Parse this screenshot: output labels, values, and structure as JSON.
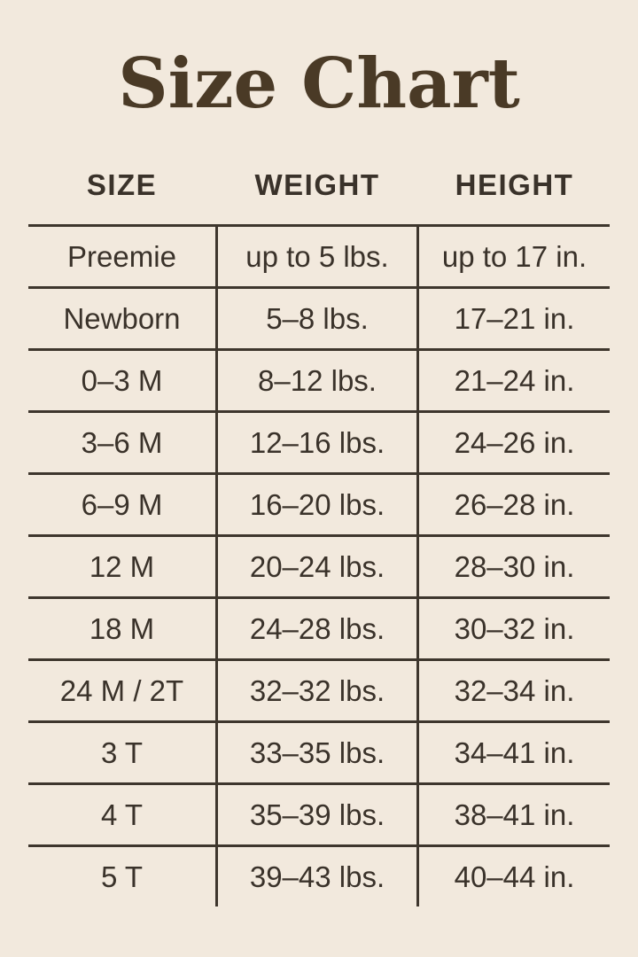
{
  "title": "Size Chart",
  "colors": {
    "background": "#f2e9dd",
    "title_text": "#4a3a26",
    "body_text": "#3a322a",
    "grid_lines": "#3e362d"
  },
  "chart_data": {
    "type": "table",
    "title": "Size Chart",
    "columns": [
      "SIZE",
      "WEIGHT",
      "HEIGHT"
    ],
    "rows": [
      [
        "Preemie",
        "up to 5 lbs.",
        "up to 17 in."
      ],
      [
        "Newborn",
        "5–8 lbs.",
        "17–21 in."
      ],
      [
        "0–3 M",
        "8–12 lbs.",
        "21–24 in."
      ],
      [
        "3–6 M",
        "12–16 lbs.",
        "24–26 in."
      ],
      [
        "6–9 M",
        "16–20 lbs.",
        "26–28 in."
      ],
      [
        "12 M",
        "20–24 lbs.",
        "28–30 in."
      ],
      [
        "18 M",
        "24–28 lbs.",
        "30–32 in."
      ],
      [
        "24 M / 2T",
        "32–32 lbs.",
        "32–34 in."
      ],
      [
        "3 T",
        "33–35 lbs.",
        "34–41 in."
      ],
      [
        "4 T",
        "35–39 lbs.",
        "38–41 in."
      ],
      [
        "5 T",
        "39–43 lbs.",
        "40–44 in."
      ]
    ],
    "layout": {
      "grid": "horizontal rules between all rows, vertical rules around middle column only, no outer border, no bottom rule"
    }
  }
}
